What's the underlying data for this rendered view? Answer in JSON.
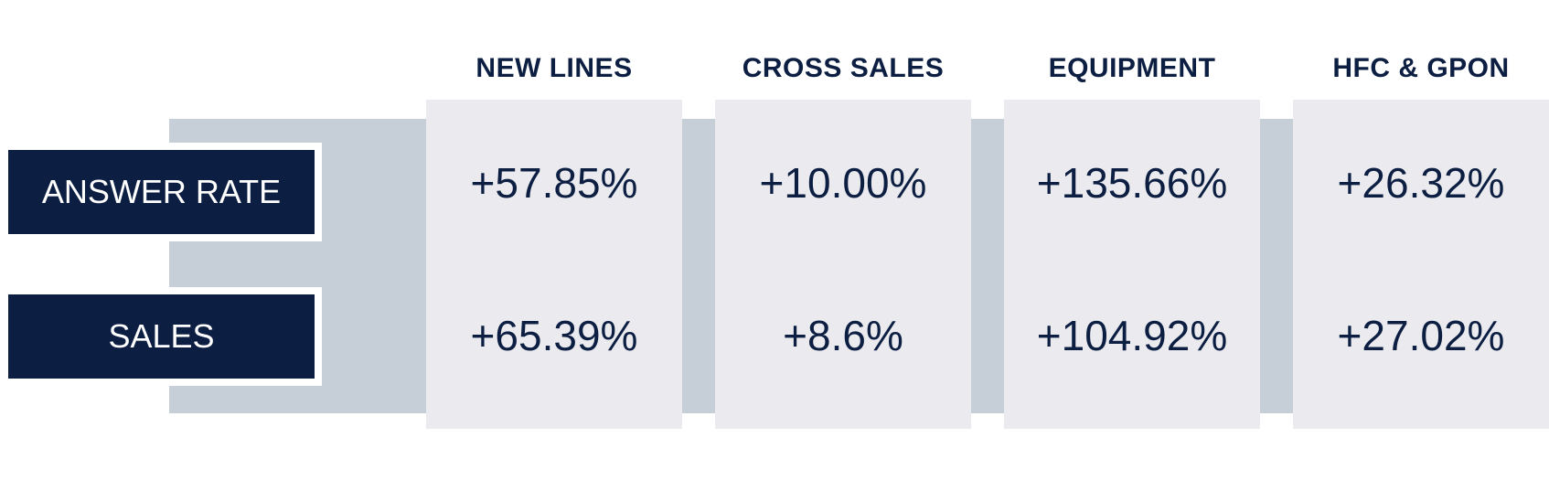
{
  "columns": [
    {
      "header": "NEW LINES",
      "answer_rate": "+57.85%",
      "sales": "+65.39%"
    },
    {
      "header": "CROSS SALES",
      "answer_rate": "+10.00%",
      "sales": "+8.6%"
    },
    {
      "header": "EQUIPMENT",
      "answer_rate": "+135.66%",
      "sales": "+104.92%"
    },
    {
      "header": "HFC & GPON",
      "answer_rate": "+26.32%",
      "sales": "+27.02%"
    }
  ],
  "rows": {
    "answer_rate_label": "ANSWER RATE",
    "sales_label": "SALES"
  },
  "colors": {
    "navy": "#0c1f42",
    "band": "#c6ced7",
    "panel": "#ebebef"
  }
}
